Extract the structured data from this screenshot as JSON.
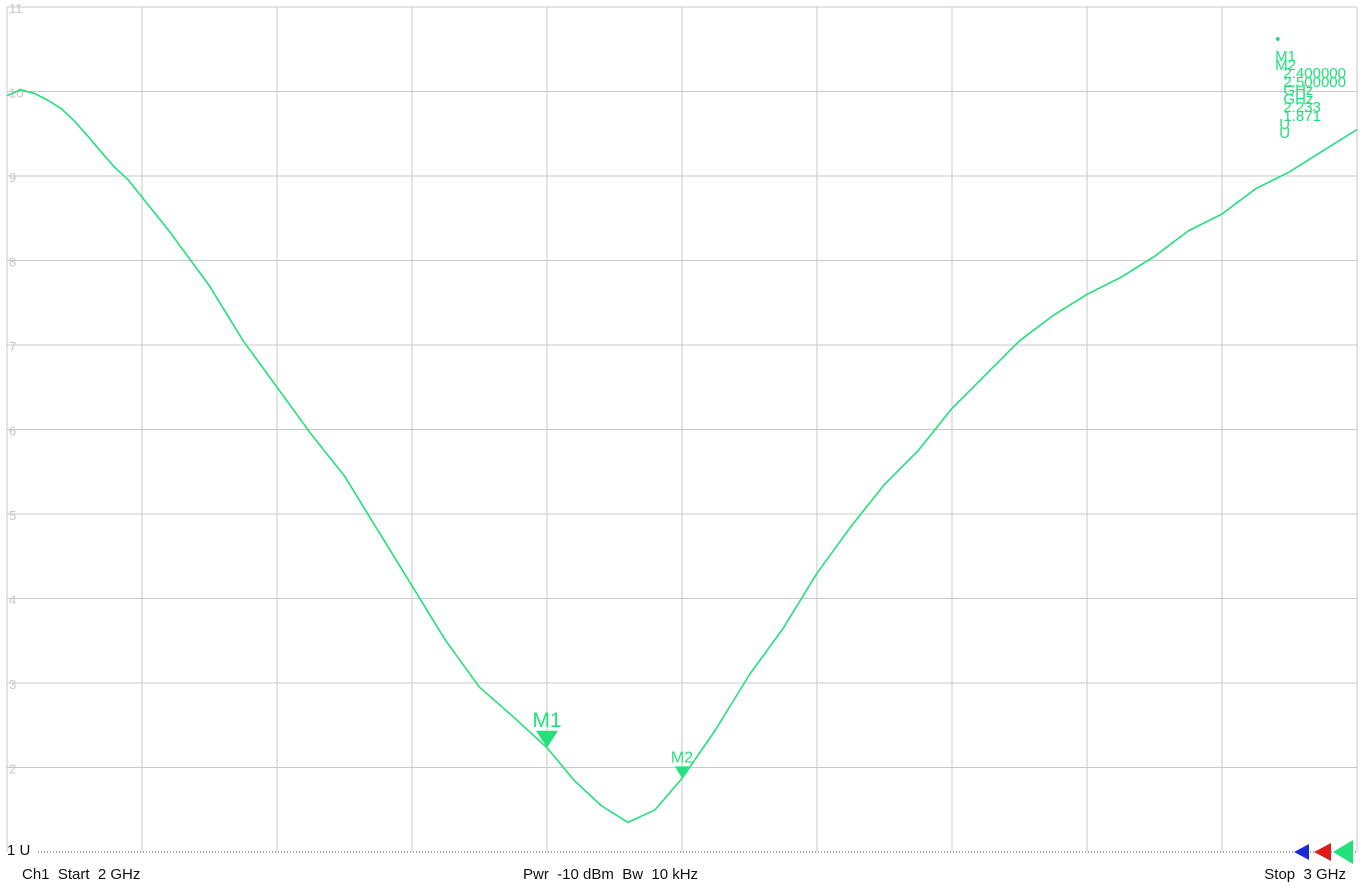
{
  "chart_data": {
    "type": "line",
    "xlim": [
      2.0,
      3.0
    ],
    "ylim": [
      1,
      11
    ],
    "x_unit": "GHz",
    "y_ticks": [
      "11",
      "10",
      "9",
      "8",
      "7",
      "6",
      "5",
      "4",
      "3",
      "2",
      "1"
    ],
    "grid": true,
    "series": [
      {
        "color": "#22e07a",
        "x": [
          2.0,
          2.01,
          2.02,
          2.03,
          2.04,
          2.05,
          2.06,
          2.07,
          2.08,
          2.09,
          2.1,
          2.12,
          2.15,
          2.175,
          2.2,
          2.225,
          2.25,
          2.275,
          2.3,
          2.325,
          2.35,
          2.375,
          2.4,
          2.42,
          2.44,
          2.46,
          2.48,
          2.5,
          2.525,
          2.55,
          2.575,
          2.6,
          2.625,
          2.65,
          2.675,
          2.7,
          2.725,
          2.75,
          2.775,
          2.8,
          2.825,
          2.85,
          2.875,
          2.9,
          2.925,
          2.95,
          2.975,
          3.0
        ],
        "y": [
          9.95,
          10.02,
          9.98,
          9.9,
          9.8,
          9.65,
          9.47,
          9.28,
          9.1,
          8.95,
          8.75,
          8.35,
          7.7,
          7.05,
          6.5,
          5.95,
          5.45,
          4.8,
          4.15,
          3.5,
          2.95,
          2.6,
          2.233,
          1.85,
          1.55,
          1.35,
          1.5,
          1.871,
          2.45,
          3.1,
          3.65,
          4.3,
          4.85,
          5.35,
          5.75,
          6.25,
          6.65,
          7.05,
          7.35,
          7.6,
          7.8,
          8.05,
          8.35,
          8.55,
          8.85,
          9.05,
          9.3,
          9.55
        ]
      }
    ],
    "markers": [
      {
        "label": "M1",
        "x": 2.4,
        "y": 2.233,
        "active": true
      },
      {
        "label": "M2",
        "x": 2.5,
        "y": 1.871,
        "active": false
      }
    ],
    "legend": {
      "position": "top-right",
      "entries": [
        {
          "bullet": "•",
          "name": "M1",
          "freq": "2.400000",
          "freq_unit": "GHz",
          "value": "2.233",
          "unit": "U"
        },
        {
          "bullet": "",
          "name": "M2",
          "freq": "2.500000",
          "freq_unit": "GHz",
          "value": "1.871",
          "unit": "U"
        }
      ]
    },
    "reference_label": "1 U",
    "footer": {
      "left": "Ch1  Start  2 GHz",
      "center": "Pwr  -10 dBm  Bw  10 kHz",
      "right": "Stop  3 GHz"
    },
    "ref_triangle_colors": [
      "#1a2bd6",
      "#e01b1b",
      "#22e07a"
    ]
  }
}
